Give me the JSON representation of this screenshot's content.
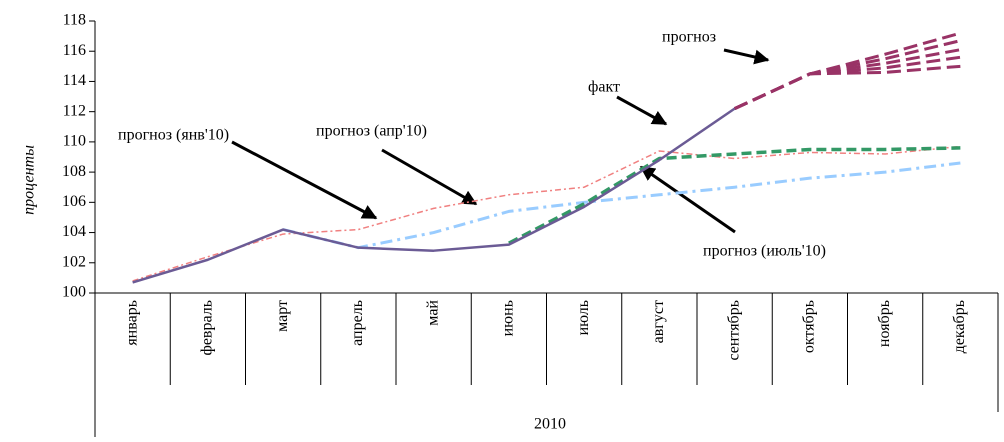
{
  "chart_data": {
    "type": "line",
    "y_label": "проценты",
    "x_group_label": "2010",
    "categories": [
      "январь",
      "февраль",
      "март",
      "апрель",
      "май",
      "июнь",
      "июль",
      "август",
      "сентябрь",
      "октябрь",
      "ноябрь",
      "декабрь"
    ],
    "series": [
      {
        "color": "#f08080",
        "values": [
          100.8,
          102.4,
          103.9,
          104.2,
          105.6,
          106.5,
          107.0,
          109.4,
          108.9,
          109.3,
          109.2,
          109.7
        ]
      },
      {
        "color": "#99ccff",
        "values": [
          null,
          null,
          104.2,
          103.0,
          104.0,
          105.4,
          106.0,
          106.5,
          107.0,
          107.6,
          108.0,
          108.6
        ]
      },
      {
        "color": "#339966",
        "values": [
          null,
          null,
          null,
          null,
          null,
          103.3,
          105.9,
          108.9,
          109.2,
          109.5,
          109.5,
          109.6
        ]
      },
      {
        "color": "#993366",
        "values": [
          null,
          null,
          null,
          null,
          null,
          null,
          null,
          null,
          112.2,
          114.5,
          114.6,
          115.0
        ]
      },
      {
        "color": "#993366",
        "values": [
          null,
          null,
          null,
          null,
          null,
          null,
          null,
          null,
          112.2,
          114.5,
          114.9,
          115.6
        ]
      },
      {
        "color": "#993366",
        "values": [
          null,
          null,
          null,
          null,
          null,
          null,
          null,
          null,
          112.2,
          114.5,
          115.2,
          116.1
        ]
      },
      {
        "color": "#993366",
        "values": [
          null,
          null,
          null,
          null,
          null,
          null,
          null,
          null,
          112.2,
          114.5,
          115.5,
          116.7
        ]
      },
      {
        "color": "#993366",
        "values": [
          null,
          null,
          null,
          null,
          null,
          null,
          null,
          null,
          112.2,
          114.5,
          115.8,
          117.2
        ]
      },
      {
        "color": "#6b5b95",
        "values": [
          100.7,
          102.2,
          104.2,
          103.0,
          102.8,
          103.2,
          105.7,
          108.8,
          112.2,
          null,
          null,
          null
        ]
      }
    ],
    "annotations": [
      "прогноз (янв'10)",
      "прогноз (апр'10)",
      "факт",
      "прогноз",
      "прогноз (июль'10)"
    ],
    "ylim": [
      100,
      118
    ],
    "yticks": [
      100,
      102,
      104,
      106,
      108,
      110,
      112,
      114,
      116,
      118
    ]
  }
}
